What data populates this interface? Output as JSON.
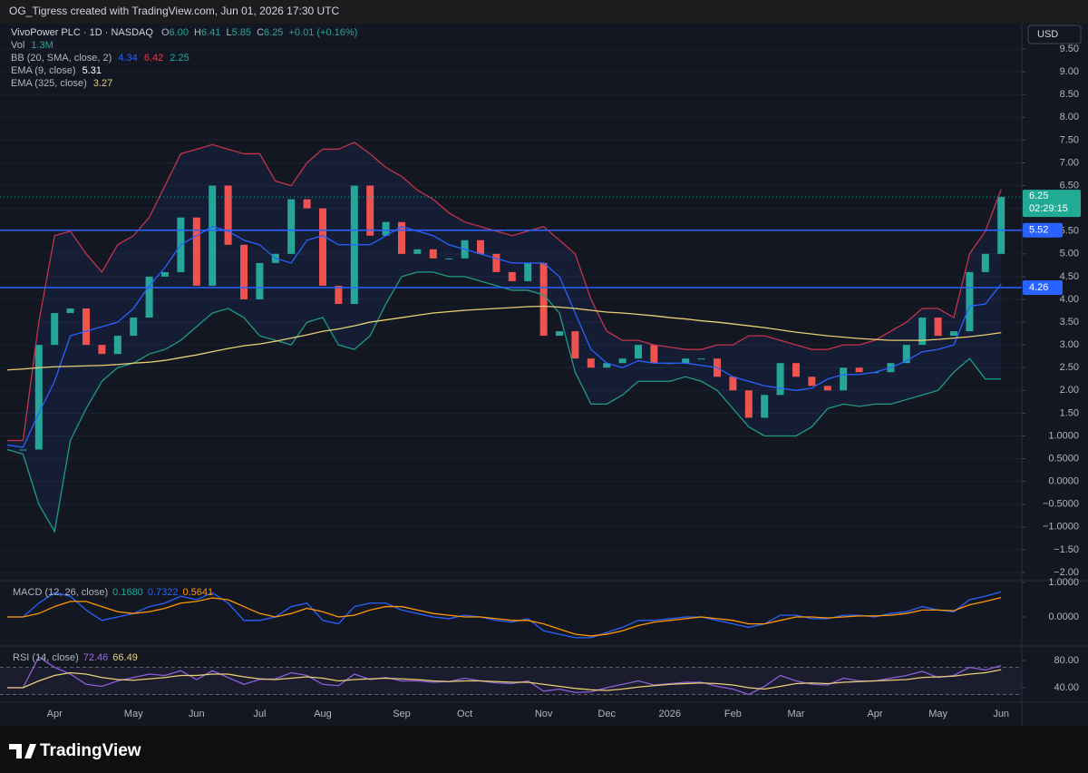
{
  "header": {
    "credit": "OG_Tigress created with TradingView.com, Jun 01, 2026 17:30 UTC"
  },
  "toolbar": {
    "currency": "USD"
  },
  "legend": {
    "symbol": "VivoPower PLC · 1D · NASDAQ",
    "ohlc": [
      {
        "key": "O",
        "value": "6.00"
      },
      {
        "key": "H",
        "value": "6.41"
      },
      {
        "key": "L",
        "value": "5.85"
      },
      {
        "key": "C",
        "value": "6.25"
      }
    ],
    "change": "+0.01 (+0.16%)",
    "volume": {
      "label": "Vol",
      "value": "1.3M"
    },
    "indicators": [
      {
        "label": "BB (20, SMA, close, 2)",
        "values": [
          "4.34",
          "6.42",
          "2.25"
        ]
      },
      {
        "label": "EMA (9, close)",
        "values": [
          "5.31"
        ]
      },
      {
        "label": "EMA (325, close)",
        "values": [
          "3.27"
        ]
      }
    ]
  },
  "footer": {
    "brand": "TradingView"
  },
  "chart_data": [
    {
      "type": "line",
      "categories": [
        null,
        null,
        null,
        "Apr",
        null,
        null,
        null,
        null,
        "May",
        null,
        null,
        null,
        "Jun",
        null,
        null,
        null,
        "Jul",
        null,
        null,
        null,
        "Aug",
        null,
        null,
        null,
        null,
        "Sep",
        null,
        null,
        null,
        "Oct",
        null,
        null,
        null,
        null,
        "Nov",
        null,
        null,
        null,
        "Dec",
        null,
        null,
        null,
        "2026",
        null,
        null,
        null,
        "Feb",
        null,
        null,
        null,
        "Mar",
        null,
        null,
        null,
        null,
        "Apr",
        null,
        null,
        null,
        "May",
        null,
        null,
        null,
        "Jun"
      ],
      "series": [
        {
          "up_color": "#26a69a",
          "down_color": "#ef5350",
          "values": [
            0.7,
            0.7,
            3.0,
            3.7,
            3.8,
            3.0,
            2.8,
            3.2,
            3.6,
            4.5,
            4.6,
            5.8,
            4.3,
            6.5,
            5.2,
            4.0,
            4.8,
            5.0,
            6.2,
            6.0,
            4.3,
            3.9,
            6.5,
            5.4,
            5.7,
            5.0,
            5.1,
            4.9,
            4.9,
            5.3,
            5.0,
            4.6,
            4.4,
            4.8,
            3.2,
            3.3,
            2.7,
            2.5,
            2.6,
            2.7,
            3.0,
            2.6,
            2.6,
            2.7,
            2.7,
            2.3,
            2.0,
            1.4,
            1.9,
            2.6,
            2.3,
            2.1,
            2.0,
            2.5,
            2.4,
            2.4,
            2.6,
            3.0,
            3.6,
            3.2,
            3.3,
            4.6,
            5.0,
            6.25
          ]
        },
        {
          "color": "#c2344a",
          "values": [
            0.9,
            0.9,
            3.5,
            5.4,
            5.5,
            5.0,
            4.6,
            5.2,
            5.4,
            5.8,
            6.5,
            7.2,
            7.3,
            7.4,
            7.3,
            7.2,
            7.2,
            6.6,
            6.5,
            7.0,
            7.3,
            7.3,
            7.45,
            7.2,
            6.9,
            6.7,
            6.4,
            6.2,
            5.9,
            5.7,
            5.6,
            5.5,
            5.4,
            5.5,
            5.6,
            5.3,
            5.0,
            4.0,
            3.3,
            3.1,
            3.1,
            3.0,
            2.95,
            2.9,
            2.9,
            3.0,
            3.0,
            3.2,
            3.2,
            3.1,
            3.0,
            2.9,
            2.9,
            3.0,
            3.0,
            3.1,
            3.3,
            3.5,
            3.8,
            3.8,
            3.6,
            5.0,
            5.5,
            6.42
          ]
        },
        {
          "color": "#1e9b83",
          "values": [
            0.7,
            0.6,
            -0.5,
            -1.1,
            0.9,
            1.6,
            2.2,
            2.5,
            2.6,
            2.8,
            2.9,
            3.1,
            3.4,
            3.7,
            3.8,
            3.6,
            3.2,
            3.1,
            3.0,
            3.5,
            3.6,
            3.0,
            2.9,
            3.2,
            3.9,
            4.5,
            4.6,
            4.6,
            4.5,
            4.5,
            4.4,
            4.3,
            4.2,
            4.2,
            4.1,
            3.7,
            2.4,
            1.7,
            1.7,
            1.9,
            2.2,
            2.2,
            2.2,
            2.3,
            2.2,
            2.0,
            1.6,
            1.2,
            1.0,
            1.0,
            1.0,
            1.2,
            1.6,
            1.7,
            1.65,
            1.7,
            1.7,
            1.8,
            1.9,
            2.0,
            2.4,
            2.7,
            2.25,
            2.25
          ]
        },
        {
          "color": "#2962ff",
          "values": [
            0.8,
            0.75,
            1.5,
            2.2,
            3.2,
            3.3,
            3.4,
            3.5,
            3.8,
            4.3,
            4.7,
            5.2,
            5.4,
            5.6,
            5.5,
            5.3,
            5.2,
            4.9,
            4.8,
            5.3,
            5.4,
            5.2,
            5.2,
            5.2,
            5.4,
            5.6,
            5.5,
            5.4,
            5.2,
            5.1,
            5.0,
            4.9,
            4.8,
            4.8,
            4.8,
            4.5,
            3.7,
            2.9,
            2.6,
            2.5,
            2.65,
            2.6,
            2.6,
            2.6,
            2.55,
            2.5,
            2.3,
            2.2,
            2.1,
            2.05,
            2.0,
            2.05,
            2.25,
            2.35,
            2.35,
            2.4,
            2.5,
            2.65,
            2.85,
            2.9,
            3.0,
            3.85,
            3.9,
            4.34
          ]
        },
        {
          "color": "#e8cf73",
          "values": [
            2.45,
            2.47,
            2.5,
            2.52,
            2.53,
            2.54,
            2.55,
            2.57,
            2.6,
            2.62,
            2.66,
            2.72,
            2.78,
            2.85,
            2.92,
            2.98,
            3.02,
            3.08,
            3.15,
            3.22,
            3.3,
            3.35,
            3.42,
            3.5,
            3.55,
            3.6,
            3.65,
            3.7,
            3.73,
            3.76,
            3.78,
            3.8,
            3.82,
            3.84,
            3.85,
            3.83,
            3.8,
            3.76,
            3.72,
            3.7,
            3.67,
            3.64,
            3.6,
            3.57,
            3.53,
            3.5,
            3.46,
            3.42,
            3.38,
            3.33,
            3.28,
            3.24,
            3.2,
            3.17,
            3.14,
            3.12,
            3.1,
            3.1,
            3.1,
            3.12,
            3.15,
            3.18,
            3.22,
            3.27
          ]
        }
      ],
      "band_fill": "rgba(41,98,255,0.09)",
      "ylim": [
        -2.18,
        9.98
      ],
      "yticks": [
        {
          "value": 9.5,
          "label": "9.50"
        },
        {
          "value": 9,
          "label": "9.00"
        },
        {
          "value": 8.5,
          "label": "8.50"
        },
        {
          "value": 8,
          "label": "8.00"
        },
        {
          "value": 7.5,
          "label": "7.50"
        },
        {
          "value": 7,
          "label": "7.00"
        },
        {
          "value": 6.5,
          "label": "6.50"
        },
        {
          "value": 6,
          "label": "6.00"
        },
        {
          "value": 5.5,
          "label": "5.50"
        },
        {
          "value": 5,
          "label": "5.00"
        },
        {
          "value": 4.5,
          "label": "4.50"
        },
        {
          "value": 4,
          "label": "4.00"
        },
        {
          "value": 3.5,
          "label": "3.50"
        },
        {
          "value": 3,
          "label": "3.00"
        },
        {
          "value": 2.5,
          "label": "2.50"
        },
        {
          "value": 2,
          "label": "2.00"
        },
        {
          "value": 1.5,
          "label": "1.50"
        },
        {
          "value": 1,
          "label": "1.0000"
        },
        {
          "value": 0.5,
          "label": "0.5000"
        },
        {
          "value": 0,
          "label": "0.0000"
        },
        {
          "value": -0.5,
          "label": "−0.5000"
        },
        {
          "value": -1,
          "label": "−1.0000"
        },
        {
          "value": -1.5,
          "label": "−1.50"
        },
        {
          "value": -2,
          "label": "−2.00"
        }
      ],
      "grid": true,
      "hlines": [
        {
          "value": 5.52,
          "label": "5.52",
          "color": "#2962ff"
        },
        {
          "value": 4.26,
          "label": "4.26",
          "color": "#2962ff"
        }
      ],
      "last": {
        "value": 6.25,
        "label": "6.25",
        "countdown": "02:29:15",
        "color": "#22ab94"
      }
    },
    {
      "type": "line",
      "legend": "MACD (12, 26, close)",
      "value_labels": [
        "0.1680",
        "0.7322",
        "0.5641"
      ],
      "value_colors": [
        "#26a69a",
        "#2962ff",
        "#ff9800"
      ],
      "series": [
        {
          "color": "#2962ff",
          "values": [
            0,
            0,
            0.4,
            0.7,
            0.6,
            0.2,
            -0.1,
            0,
            0.1,
            0.3,
            0.4,
            0.6,
            0.5,
            0.7,
            0.4,
            -0.1,
            -0.1,
            0,
            0.3,
            0.4,
            -0.1,
            -0.2,
            0.3,
            0.4,
            0.4,
            0.2,
            0.1,
            0,
            -0.05,
            0.05,
            0,
            -0.1,
            -0.15,
            -0.05,
            -0.4,
            -0.5,
            -0.6,
            -0.6,
            -0.45,
            -0.3,
            -0.1,
            -0.1,
            -0.05,
            0,
            0,
            -0.1,
            -0.2,
            -0.3,
            -0.2,
            0.05,
            0.05,
            -0.05,
            -0.05,
            0.05,
            0.05,
            0,
            0.1,
            0.15,
            0.3,
            0.2,
            0.15,
            0.5,
            0.6,
            0.73
          ]
        },
        {
          "color": "#ff9800",
          "values": [
            0,
            0,
            0.1,
            0.3,
            0.45,
            0.45,
            0.3,
            0.15,
            0.1,
            0.15,
            0.25,
            0.4,
            0.45,
            0.55,
            0.5,
            0.3,
            0.1,
            0,
            0.1,
            0.25,
            0.15,
            0,
            0.05,
            0.2,
            0.3,
            0.3,
            0.2,
            0.1,
            0.05,
            0,
            0,
            -0.05,
            -0.1,
            -0.1,
            -0.2,
            -0.35,
            -0.5,
            -0.55,
            -0.5,
            -0.4,
            -0.25,
            -0.15,
            -0.1,
            -0.05,
            0,
            -0.05,
            -0.1,
            -0.2,
            -0.2,
            -0.1,
            0,
            0,
            -0.03,
            0,
            0.03,
            0.03,
            0.05,
            0.1,
            0.2,
            0.2,
            0.18,
            0.35,
            0.45,
            0.56
          ]
        }
      ],
      "ylim": [
        -0.84,
        1.05
      ],
      "yticks": [
        {
          "value": 1,
          "label": "1.0000"
        },
        {
          "value": 0,
          "label": "0.0000"
        }
      ]
    },
    {
      "type": "line",
      "legend": "RSI (14, close)",
      "value_labels": [
        "72.46",
        "66.49"
      ],
      "value_colors": [
        "#9c6ade",
        "#e8cf73"
      ],
      "series": [
        {
          "color": "#8e5fd6",
          "values": [
            40,
            40,
            85,
            70,
            60,
            45,
            42,
            50,
            55,
            60,
            58,
            65,
            52,
            65,
            55,
            45,
            52,
            53,
            62,
            58,
            45,
            43,
            60,
            52,
            55,
            50,
            50,
            48,
            49,
            54,
            50,
            47,
            46,
            50,
            35,
            38,
            33,
            34,
            40,
            45,
            50,
            44,
            46,
            48,
            48,
            42,
            38,
            30,
            42,
            58,
            50,
            45,
            44,
            54,
            50,
            50,
            54,
            58,
            64,
            55,
            58,
            70,
            66,
            72.46
          ]
        },
        {
          "color": "#e8cf73",
          "values": [
            40,
            40,
            50,
            58,
            62,
            60,
            55,
            52,
            51,
            53,
            55,
            58,
            58,
            60,
            60,
            56,
            53,
            52,
            54,
            56,
            54,
            50,
            52,
            53,
            54,
            53,
            52,
            50,
            49,
            50,
            50,
            49,
            48,
            48,
            45,
            42,
            39,
            37,
            36,
            38,
            41,
            43,
            45,
            46,
            47,
            46,
            44,
            40,
            38,
            42,
            46,
            47,
            46,
            48,
            49,
            50,
            51,
            52,
            55,
            56,
            57,
            60,
            62,
            66.49
          ]
        }
      ],
      "bands": [
        30,
        70
      ],
      "ylim": [
        18.7,
        101.3
      ],
      "yticks": [
        {
          "value": 80,
          "label": "80.00"
        },
        {
          "value": 40,
          "label": "40.00"
        }
      ]
    }
  ]
}
